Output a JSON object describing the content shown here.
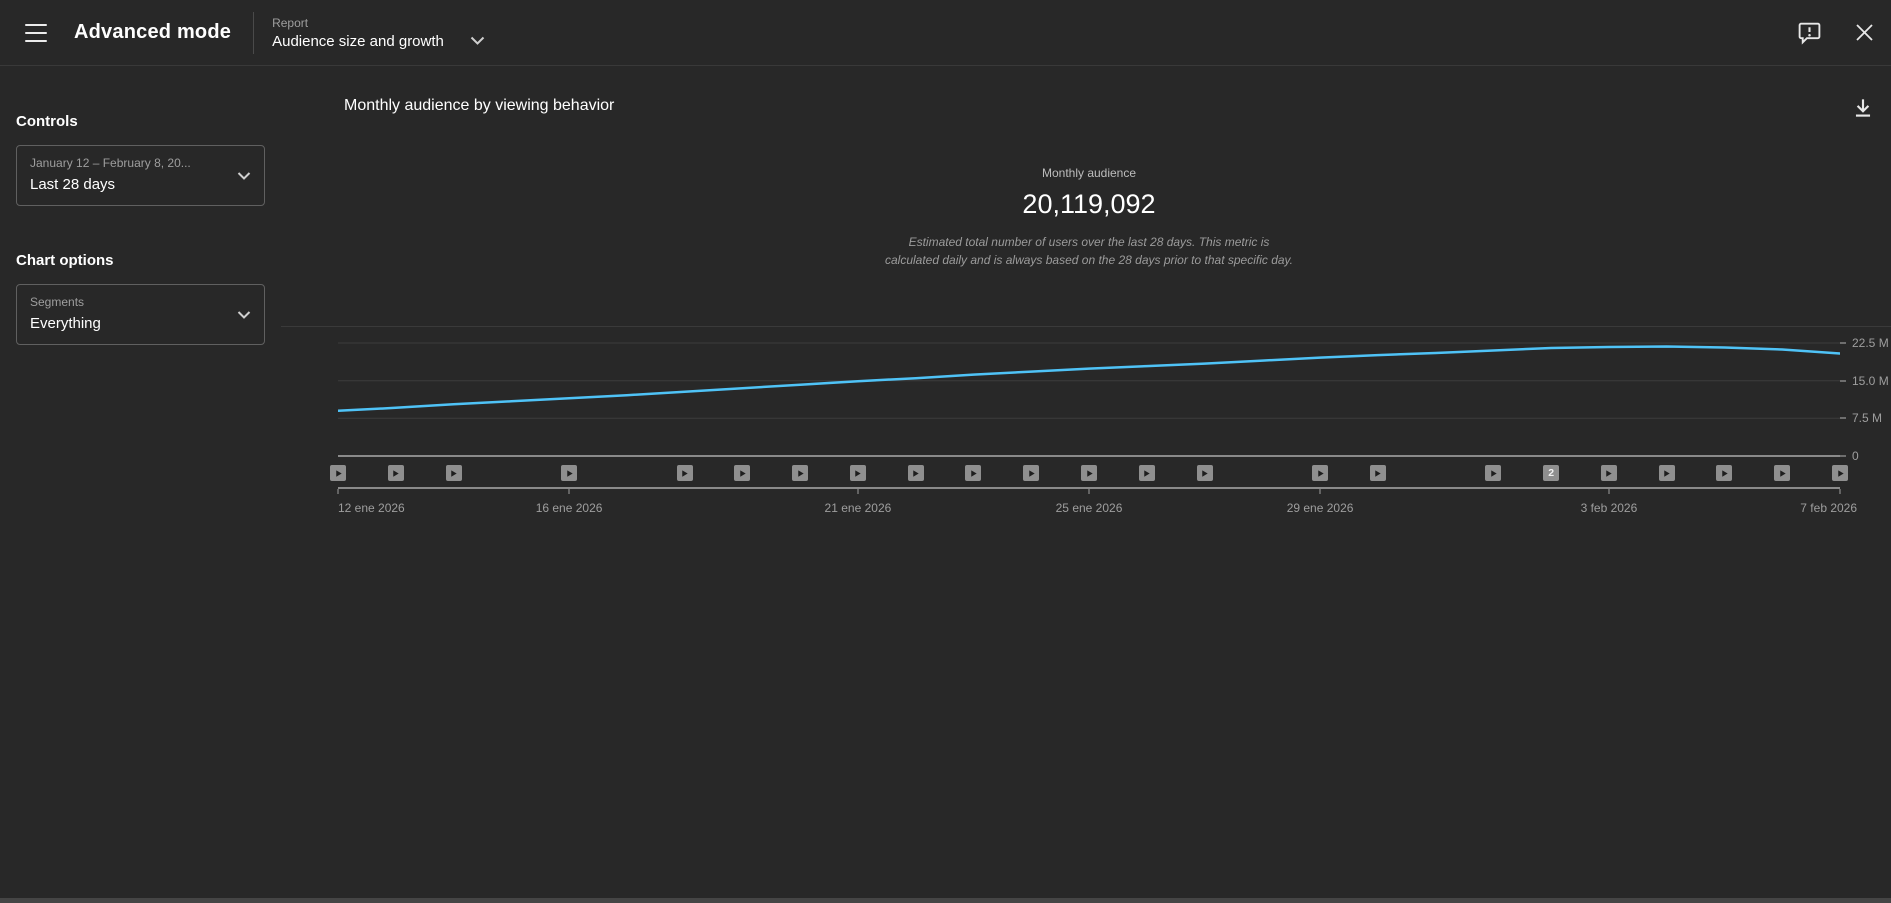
{
  "header": {
    "title": "Advanced mode",
    "report_label": "Report",
    "report_value": "Audience size and growth"
  },
  "sidebar": {
    "controls_heading": "Controls",
    "date_range": {
      "label": "January 12 – February 8, 20...",
      "value": "Last 28 days"
    },
    "chart_options_heading": "Chart options",
    "segments": {
      "label": "Segments",
      "value": "Everything"
    }
  },
  "main": {
    "title": "Monthly audience by viewing behavior",
    "metric": {
      "label": "Monthly audience",
      "value": "20,119,092",
      "description_line1": "Estimated total number of users over the last 28 days. This metric is",
      "description_line2": "calculated daily and is always based on the 28 days prior to that specific day."
    }
  },
  "icons": {
    "menu": "hamburger",
    "report_chevron": "chevron-down",
    "feedback": "speech-bubble-exclamation",
    "close": "x",
    "download": "download-arrow",
    "select_chevron": "chevron-down",
    "video_marker": "play-triangle"
  },
  "colors": {
    "background": "#282828",
    "line": "#4fc3f7",
    "grid": "#3c3c3c",
    "axis": "#8a8a8a",
    "marker_gray": "#8f8f8f",
    "text_secondary": "#9e9e9e"
  },
  "chart_data": {
    "type": "line",
    "title": "Monthly audience",
    "values_unit": "millions of users",
    "x": [
      "12 ene 2026",
      "13 ene 2026",
      "14 ene 2026",
      "15 ene 2026",
      "16 ene 2026",
      "17 ene 2026",
      "18 ene 2026",
      "19 ene 2026",
      "20 ene 2026",
      "21 ene 2026",
      "22 ene 2026",
      "23 ene 2026",
      "24 ene 2026",
      "25 ene 2026",
      "26 ene 2026",
      "27 ene 2026",
      "28 ene 2026",
      "29 ene 2026",
      "30 ene 2026",
      "31 ene 2026",
      "1 feb 2026",
      "2 feb 2026",
      "3 feb 2026",
      "4 feb 2026",
      "5 feb 2026",
      "6 feb 2026",
      "7 feb 2026"
    ],
    "values": [
      9.0,
      9.6,
      10.3,
      10.9,
      11.5,
      12.1,
      12.8,
      13.5,
      14.2,
      14.9,
      15.5,
      16.2,
      16.8,
      17.4,
      17.9,
      18.4,
      19.0,
      19.6,
      20.1,
      20.5,
      21.0,
      21.5,
      21.7,
      21.8,
      21.6,
      21.2,
      20.4
    ],
    "ylim": [
      0,
      22.5
    ],
    "yticks": [
      {
        "v": 22.5,
        "label": "22.5 M"
      },
      {
        "v": 15.0,
        "label": "15.0 M"
      },
      {
        "v": 7.5,
        "label": "7.5 M"
      },
      {
        "v": 0,
        "label": "0"
      }
    ],
    "xticks": [
      {
        "day": 0,
        "label": "12 ene 2026"
      },
      {
        "day": 4,
        "label": "16 ene 2026"
      },
      {
        "day": 9,
        "label": "21 ene 2026"
      },
      {
        "day": 13,
        "label": "25 ene 2026"
      },
      {
        "day": 17,
        "label": "29 ene 2026"
      },
      {
        "day": 22,
        "label": "3 feb 2026"
      },
      {
        "day": 26,
        "label": "7 feb 2026"
      }
    ],
    "x_axis_days_span": 26,
    "grid": true,
    "legend": false,
    "line_color": "#4fc3f7",
    "video_markers": {
      "days": [
        0,
        1,
        2,
        4,
        6,
        7,
        8,
        9,
        10,
        11,
        12,
        13,
        14,
        15,
        17,
        18,
        20,
        21,
        22,
        23,
        24,
        25,
        26
      ],
      "badges": {
        "21": "2"
      }
    }
  }
}
